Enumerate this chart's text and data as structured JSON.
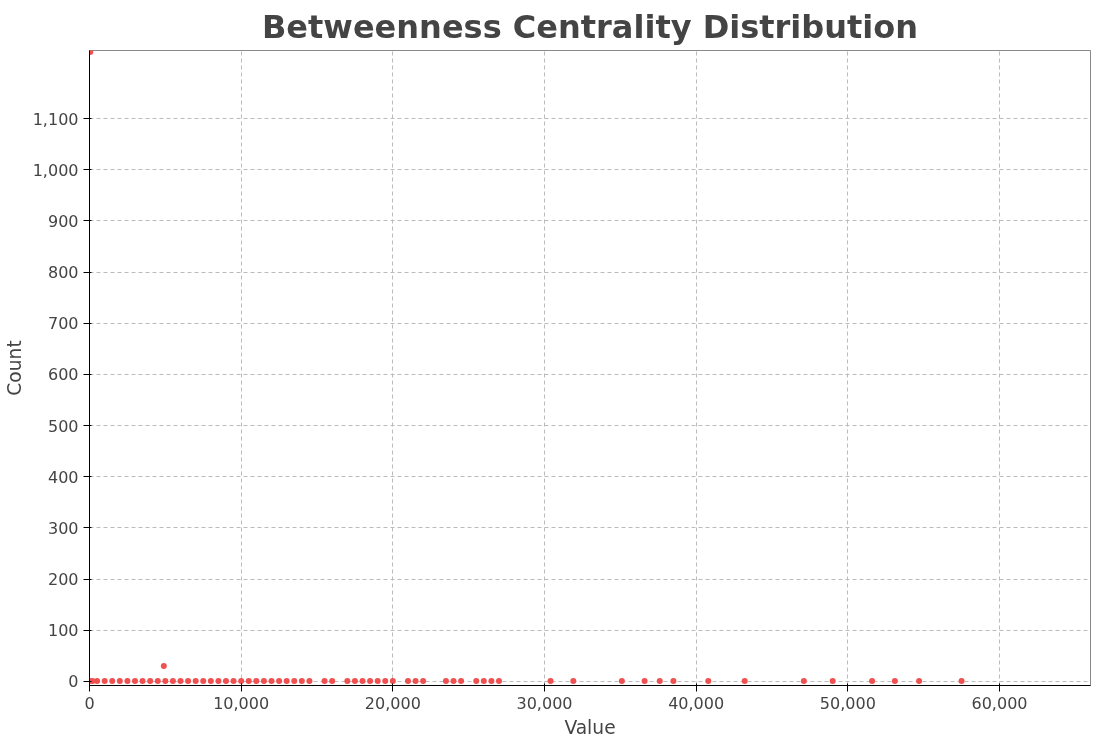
{
  "chart_data": {
    "type": "scatter",
    "title": "Betweenness Centrality Distribution",
    "xlabel": "Value",
    "ylabel": "Count",
    "x": [
      50,
      4900,
      0,
      200,
      500,
      1000,
      1500,
      2000,
      2500,
      3000,
      3500,
      4000,
      4500,
      5000,
      5500,
      6000,
      6500,
      7000,
      7500,
      8000,
      8500,
      9000,
      9500,
      10000,
      10500,
      11000,
      11500,
      12000,
      12500,
      13000,
      13500,
      14000,
      14500,
      15500,
      16000,
      17000,
      17500,
      18000,
      18500,
      19000,
      19500,
      20000,
      21000,
      21500,
      22000,
      23500,
      24000,
      24500,
      25500,
      26000,
      26500,
      27000,
      30400,
      31900,
      35100,
      36600,
      37600,
      38500,
      40800,
      43200,
      47100,
      49000,
      51600,
      53100,
      54700,
      57500
    ],
    "values": [
      1230,
      30,
      1,
      1,
      1,
      1,
      1,
      1,
      1,
      1,
      1,
      1,
      1,
      1,
      1,
      1,
      1,
      1,
      1,
      1,
      1,
      1,
      1,
      1,
      1,
      1,
      1,
      1,
      1,
      1,
      1,
      1,
      1,
      1,
      1,
      1,
      1,
      1,
      1,
      1,
      1,
      1,
      1,
      1,
      1,
      1,
      1,
      1,
      1,
      1,
      1,
      1,
      1,
      1,
      1,
      1,
      1,
      1,
      1,
      1,
      1,
      1,
      1,
      1,
      1,
      1
    ],
    "color": "#f05050",
    "marker": "circle",
    "xlim": [
      0,
      66000
    ],
    "xticks": [
      {
        "value": 0,
        "label": "0"
      },
      {
        "value": 10000,
        "label": "10,000"
      },
      {
        "value": 20000,
        "label": "20,000"
      },
      {
        "value": 30000,
        "label": "30,000"
      },
      {
        "value": 40000,
        "label": "40,000"
      },
      {
        "value": 50000,
        "label": "50,000"
      },
      {
        "value": 60000,
        "label": "60,000"
      }
    ],
    "ylim": [
      -8,
      1233
    ],
    "yticks": [
      0,
      100,
      200,
      300,
      400,
      500,
      600,
      700,
      800,
      900,
      {
        "value": 1000,
        "label": "1,000"
      },
      {
        "value": 1100,
        "label": "1,100"
      }
    ],
    "grid": true
  }
}
